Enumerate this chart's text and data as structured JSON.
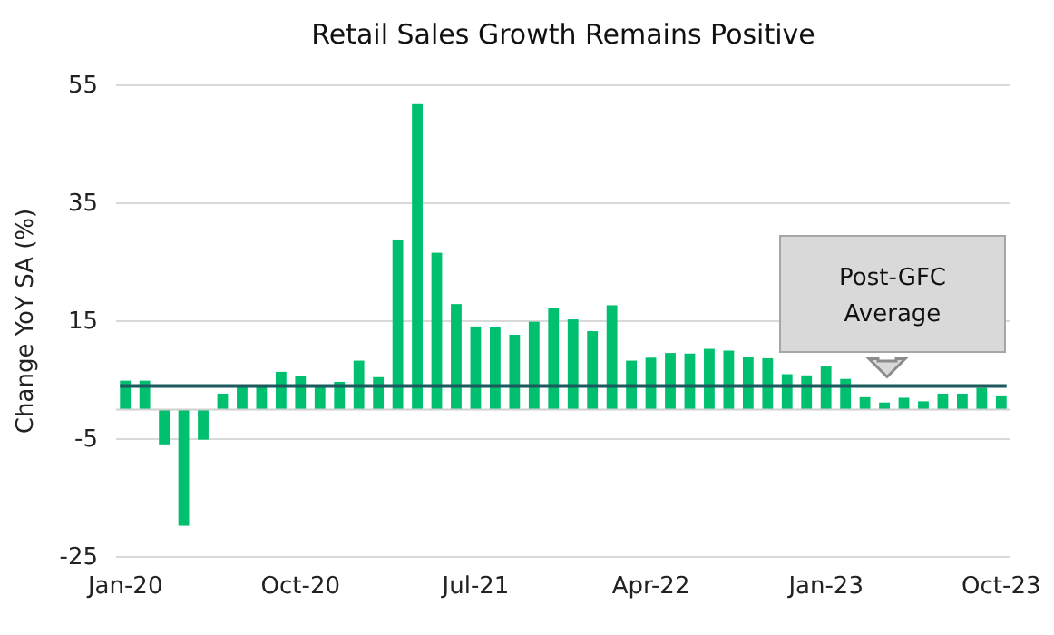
{
  "chart_data": {
    "type": "bar",
    "title": "Retail Sales Growth Remains Positive",
    "ylabel": "Change YoY SA  (%)",
    "categories": [
      "Jan-20",
      null,
      null,
      null,
      null,
      null,
      null,
      null,
      null,
      "Oct-20",
      null,
      null,
      null,
      null,
      null,
      null,
      null,
      null,
      "Jul-21",
      null,
      null,
      null,
      null,
      null,
      null,
      null,
      null,
      "Apr-22",
      null,
      null,
      null,
      null,
      null,
      null,
      null,
      null,
      "Jan-23",
      null,
      null,
      null,
      null,
      null,
      null,
      null,
      null,
      "Oct-23"
    ],
    "values": [
      4.9,
      4.9,
      -5.9,
      -19.7,
      -5.1,
      2.7,
      3.9,
      3.9,
      6.4,
      5.7,
      3.9,
      4.7,
      8.3,
      5.5,
      28.7,
      51.8,
      26.6,
      17.9,
      14.1,
      14.0,
      12.7,
      14.9,
      17.2,
      15.3,
      13.3,
      17.7,
      8.3,
      8.8,
      9.6,
      9.5,
      10.3,
      10.0,
      9.0,
      8.7,
      6.0,
      5.8,
      7.3,
      5.2,
      2.1,
      1.2,
      2.0,
      1.4,
      2.7,
      2.7,
      3.7,
      2.4
    ],
    "color": "#00bf6f",
    "ylim": [
      -25,
      55
    ],
    "yticks": [
      -25,
      -5,
      15,
      35,
      55
    ],
    "grid": "y",
    "ref_lines": [
      {
        "axis": "y",
        "value": 4,
        "label": "Post-GFC Average",
        "color": "#1d5a5e"
      }
    ]
  }
}
